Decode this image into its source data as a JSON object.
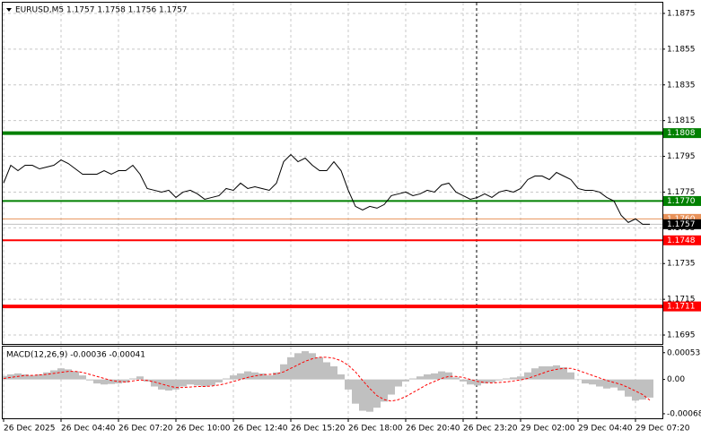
{
  "chart_data": [
    {
      "type": "line",
      "title": "EURUSD,M5  1.1757 1.1758 1.1756 1.1757",
      "categories": [
        "26 Dec 2025",
        null,
        null,
        null,
        null,
        null,
        null,
        null,
        "26 Dec 04:40",
        null,
        null,
        null,
        null,
        null,
        null,
        null,
        "26 Dec 07:20",
        null,
        null,
        null,
        null,
        null,
        null,
        null,
        "26 Dec 10:00",
        null,
        null,
        null,
        null,
        null,
        null,
        null,
        "26 Dec 12:40",
        null,
        null,
        null,
        null,
        null,
        null,
        null,
        "26 Dec 15:20",
        null,
        null,
        null,
        null,
        null,
        null,
        null,
        "26 Dec 18:00",
        null,
        null,
        null,
        null,
        null,
        null,
        null,
        "26 Dec 20:40",
        null,
        null,
        null,
        null,
        null,
        null,
        null,
        "26 Dec 23:20",
        null,
        null,
        null,
        null,
        null,
        null,
        null,
        "29 Dec 02:00",
        null,
        null,
        null,
        null,
        null,
        null,
        null,
        "29 Dec 04:40",
        null,
        null,
        null,
        null,
        null,
        null,
        null,
        "29 Dec 07:20",
        null,
        null
      ],
      "values": [
        1.178,
        1.179,
        1.1787,
        1.179,
        1.179,
        1.1788,
        1.1789,
        1.179,
        1.1793,
        1.1791,
        1.1788,
        1.1785,
        1.1785,
        1.1785,
        1.1787,
        1.1785,
        1.1787,
        1.1787,
        1.179,
        1.1785,
        1.1777,
        1.1776,
        1.1775,
        1.1776,
        1.1772,
        1.1775,
        1.1776,
        1.1774,
        1.1771,
        1.1772,
        1.1773,
        1.1777,
        1.1776,
        1.178,
        1.1777,
        1.1778,
        1.1777,
        1.1776,
        1.178,
        1.1792,
        1.1796,
        1.1792,
        1.1794,
        1.179,
        1.1787,
        1.1787,
        1.1792,
        1.1787,
        1.1776,
        1.1767,
        1.1765,
        1.1767,
        1.1766,
        1.1768,
        1.1773,
        1.1774,
        1.1775,
        1.1773,
        1.1774,
        1.1776,
        1.1775,
        1.1779,
        1.178,
        1.1775,
        1.1773,
        1.1771,
        1.1772,
        1.1774,
        1.1772,
        1.1775,
        1.1776,
        1.1775,
        1.1777,
        1.1782,
        1.1784,
        1.1784,
        1.1782,
        1.1786,
        1.1784,
        1.1782,
        1.1777,
        1.1776,
        1.1776,
        1.1775,
        1.1772,
        1.177,
        1.1762,
        1.1758,
        1.176,
        1.1757,
        1.1757
      ],
      "color": "#000000",
      "ylim": [
        1.169,
        1.1881
      ],
      "yticks": [
        1.1875,
        1.1855,
        1.1835,
        1.1815,
        1.1795,
        1.1775,
        1.1755,
        1.1735,
        1.1715,
        1.1695
      ],
      "grid": true,
      "levels": [
        {
          "price": 1.1808,
          "color": "#008000",
          "line_width": 4
        },
        {
          "price": {
            "value": 1.177,
            "label": "1.1770"
          },
          "color": "#008000",
          "line_width": 2
        },
        {
          "price": {
            "value": 1.176,
            "label": "1.1760"
          },
          "color": "#e8925a",
          "line_width": 1
        },
        {
          "price": 1.1757,
          "color": "#000000",
          "line_width": 1
        },
        {
          "price": 1.1748,
          "color": "#ff0000",
          "line_width": 2
        },
        {
          "price": 1.1711,
          "color": "#ff0000",
          "line_width": 4
        }
      ]
    },
    {
      "type": "combo",
      "title": "MACD(12,26,9) -0.00036 -0.00041",
      "series": [
        {
          "type": "bar",
          "color": "#c0c0c0",
          "values": [
            7e-05,
            0.0001,
            0.00012,
            0.0001,
            8e-05,
            0.0001,
            0.00014,
            0.00018,
            0.00022,
            0.0002,
            0.00016,
            8e-05,
            -2e-05,
            -8e-05,
            -0.0001,
            -9e-05,
            -8e-05,
            -6e-05,
            2e-05,
            6e-05,
            -4e-05,
            -0.00014,
            -0.0002,
            -0.00022,
            -0.0002,
            -0.00014,
            -0.0001,
            -0.00012,
            -0.00014,
            -0.00012,
            -6e-05,
            2e-05,
            8e-05,
            0.00012,
            0.00016,
            0.00014,
            0.00012,
            8e-05,
            0.00014,
            0.0003,
            0.00044,
            0.00052,
            0.00056,
            0.00052,
            0.00044,
            0.00034,
            0.00026,
            0.0001,
            -0.0002,
            -0.00048,
            -0.00062,
            -0.00064,
            -0.00056,
            -0.00044,
            -0.0003,
            -0.00014,
            -4e-05,
            2e-05,
            6e-05,
            0.0001,
            0.00012,
            0.00016,
            0.00014,
            4e-05,
            -4e-05,
            -0.0001,
            -0.00012,
            -8e-05,
            -6e-05,
            -2e-05,
            2e-05,
            4e-05,
            6e-05,
            0.00014,
            0.00022,
            0.00026,
            0.00026,
            0.00028,
            0.00024,
            0.00014,
            0,
            -8e-05,
            -0.0001,
            -0.00014,
            -0.00018,
            -0.00016,
            -0.00022,
            -0.00034,
            -0.00042,
            -0.0004,
            -0.00036
          ]
        },
        {
          "type": "line",
          "color": "#ff0000",
          "dashed": true,
          "values": [
            2e-05,
            4e-05,
            6e-05,
            8e-05,
            8e-05,
            9e-05,
            0.0001,
            0.00012,
            0.00014,
            0.00016,
            0.00016,
            0.00014,
            0.0001,
            6e-05,
            2e-05,
            -2e-05,
            -4e-05,
            -5e-05,
            -3e-05,
            -1e-05,
            -2e-05,
            -5e-05,
            -9e-05,
            -0.00013,
            -0.00016,
            -0.00016,
            -0.00015,
            -0.00014,
            -0.00014,
            -0.00013,
            -0.00011,
            -8e-05,
            -4e-05,
            0,
            4e-05,
            7e-05,
            9e-05,
            0.0001,
            0.00011,
            0.00015,
            0.00022,
            0.00029,
            0.00036,
            0.00041,
            0.00044,
            0.00044,
            0.00042,
            0.00037,
            0.00028,
            0.00015,
            -2e-05,
            -0.00018,
            -0.00032,
            -0.0004,
            -0.00043,
            -0.0004,
            -0.00034,
            -0.00026,
            -0.00018,
            -0.0001,
            -4e-05,
            2e-05,
            6e-05,
            6e-05,
            4e-05,
            0,
            -4e-05,
            -6e-05,
            -7e-05,
            -6e-05,
            -5e-05,
            -3e-05,
            -1e-05,
            2e-05,
            7e-05,
            0.00012,
            0.00017,
            0.0002,
            0.00022,
            0.00022,
            0.00018,
            0.00013,
            8e-05,
            3e-05,
            -2e-05,
            -6e-05,
            -0.0001,
            -0.00016,
            -0.00023,
            -0.0003,
            -0.00041
          ]
        }
      ],
      "ylim": [
        -0.00077,
        0.00065
      ],
      "yticks": [
        0.00053,
        {
          "value": 0,
          "label": "0.00"
        },
        -0.00068
      ],
      "grid": true
    }
  ]
}
